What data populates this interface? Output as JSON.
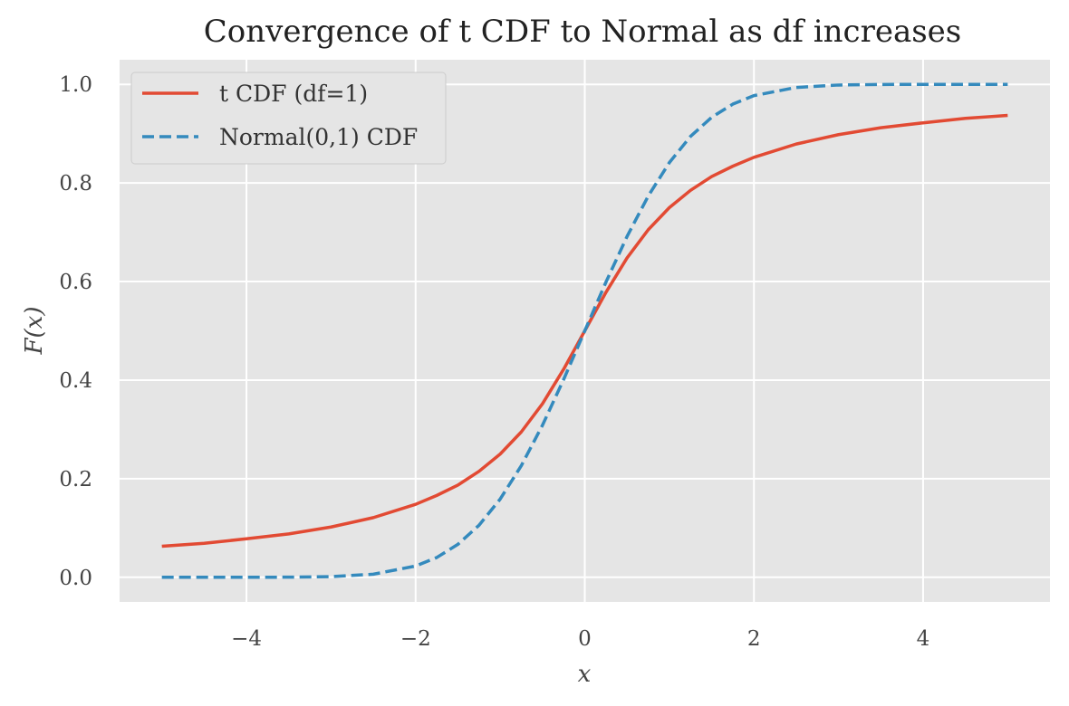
{
  "chart_data": {
    "type": "line",
    "title": "Convergence of t CDF to Normal as df increases",
    "xlabel": "x",
    "ylabel": "F(x)",
    "xlim": [
      -5.5,
      5.5
    ],
    "ylim": [
      -0.05,
      1.05
    ],
    "xticks": [
      -4,
      -2,
      0,
      2,
      4
    ],
    "xtick_labels": [
      "−4",
      "−2",
      "0",
      "2",
      "4"
    ],
    "yticks": [
      0.0,
      0.2,
      0.4,
      0.6,
      0.8,
      1.0
    ],
    "ytick_labels": [
      "0.0",
      "0.2",
      "0.4",
      "0.6",
      "0.8",
      "1.0"
    ],
    "grid": true,
    "legend_position": "top-left",
    "series": [
      {
        "name": "t CDF (df=1)",
        "color": "#e24a33",
        "style": "solid",
        "x": [
          -5,
          -4.5,
          -4,
          -3.5,
          -3,
          -2.5,
          -2,
          -1.75,
          -1.5,
          -1.25,
          -1,
          -0.75,
          -0.5,
          -0.25,
          0,
          0.25,
          0.5,
          0.75,
          1,
          1.25,
          1.5,
          1.75,
          2,
          2.5,
          3,
          3.5,
          4,
          4.5,
          5
        ],
        "y": [
          0.063,
          0.069,
          0.078,
          0.088,
          0.102,
          0.121,
          0.148,
          0.166,
          0.187,
          0.215,
          0.25,
          0.295,
          0.352,
          0.422,
          0.5,
          0.578,
          0.648,
          0.705,
          0.75,
          0.785,
          0.813,
          0.834,
          0.852,
          0.879,
          0.898,
          0.912,
          0.922,
          0.931,
          0.937
        ]
      },
      {
        "name": "Normal(0,1) CDF",
        "color": "#348abd",
        "style": "dashed",
        "x": [
          -5,
          -4.5,
          -4,
          -3.5,
          -3,
          -2.5,
          -2,
          -1.75,
          -1.5,
          -1.25,
          -1,
          -0.75,
          -0.5,
          -0.25,
          0,
          0.25,
          0.5,
          0.75,
          1,
          1.25,
          1.5,
          1.75,
          2,
          2.5,
          3,
          3.5,
          4,
          4.5,
          5
        ],
        "y": [
          0.0,
          0.0,
          0.0,
          0.0002,
          0.0013,
          0.0062,
          0.0228,
          0.0401,
          0.0668,
          0.1056,
          0.1587,
          0.2266,
          0.3085,
          0.4013,
          0.5,
          0.5987,
          0.6915,
          0.7734,
          0.8413,
          0.8944,
          0.9332,
          0.9599,
          0.9772,
          0.9938,
          0.9987,
          0.9998,
          1.0,
          1.0,
          1.0
        ]
      }
    ]
  }
}
